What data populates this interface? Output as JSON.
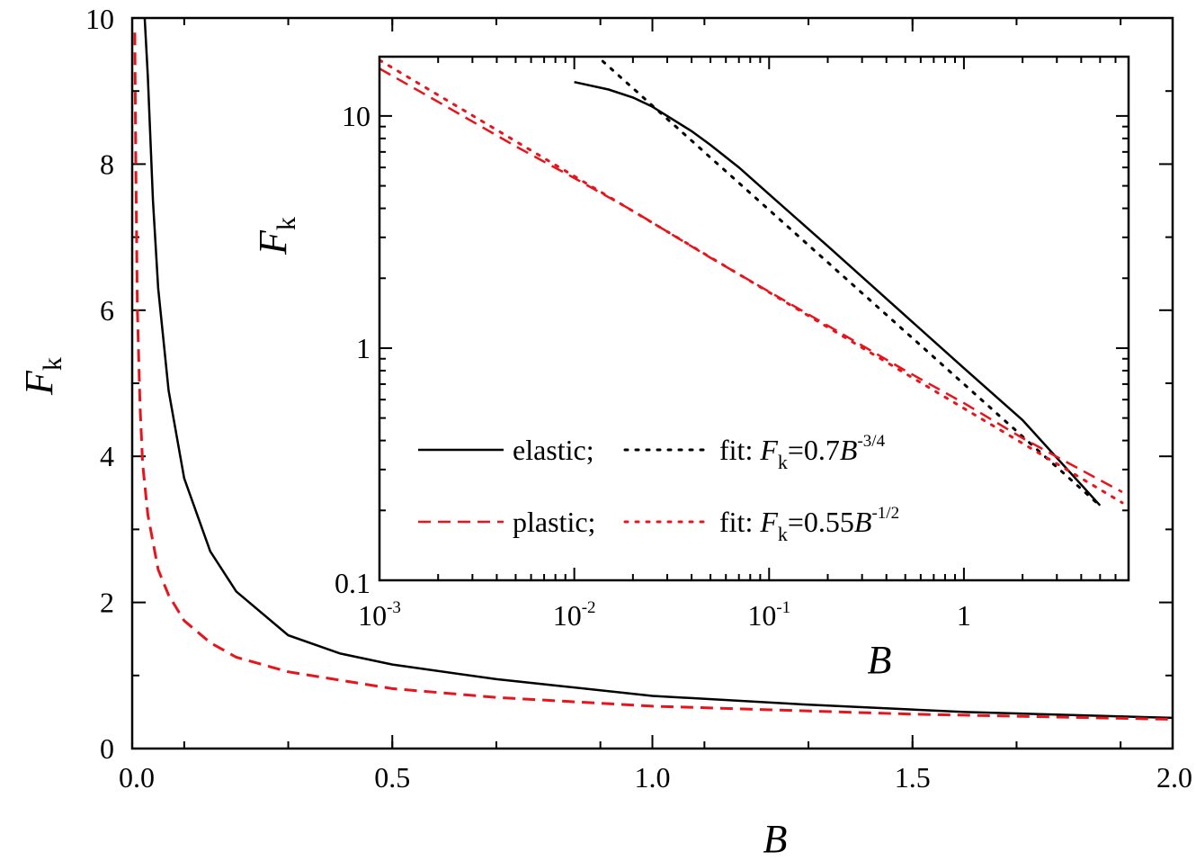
{
  "chart_data": [
    {
      "type": "line",
      "xlabel": "B",
      "ylabel": {
        "main": "F",
        "sub": "k"
      },
      "xlim": [
        0,
        2.0
      ],
      "ylim": [
        0,
        10
      ],
      "x_ticks": [
        0.0,
        0.5,
        1.0,
        1.5,
        2.0
      ],
      "x_tick_labels": [
        "0.0",
        "0.5",
        "1.0",
        "1.5",
        "2.0"
      ],
      "y_ticks": [
        0,
        2,
        4,
        6,
        8,
        10
      ],
      "y_tick_labels": [
        "0",
        "2",
        "4",
        "6",
        "8",
        "10"
      ],
      "grid": false,
      "series": [
        {
          "key": "elastic",
          "color": "#000000",
          "style": "solid",
          "x": [
            0.024,
            0.03,
            0.04,
            0.05,
            0.07,
            0.1,
            0.15,
            0.2,
            0.3,
            0.4,
            0.5,
            0.7,
            1.0,
            1.3,
            1.6,
            2.0
          ],
          "y": [
            10.0,
            9.2,
            7.5,
            6.3,
            4.9,
            3.7,
            2.7,
            2.15,
            1.55,
            1.3,
            1.15,
            0.95,
            0.72,
            0.6,
            0.5,
            0.42
          ]
        },
        {
          "key": "plastic",
          "color": "#e8141b",
          "style": "dashed",
          "x": [
            0.005,
            0.007,
            0.01,
            0.015,
            0.02,
            0.03,
            0.05,
            0.07,
            0.1,
            0.15,
            0.2,
            0.3,
            0.5,
            0.7,
            1.0,
            1.5,
            2.0
          ],
          "y": [
            9.8,
            8.0,
            6.0,
            4.7,
            3.9,
            3.2,
            2.45,
            2.1,
            1.75,
            1.45,
            1.25,
            1.05,
            0.82,
            0.7,
            0.58,
            0.47,
            0.4
          ]
        }
      ]
    },
    {
      "type": "line",
      "scale": "log-log",
      "xlabel": "B",
      "ylabel": {
        "main": "F",
        "sub": "k"
      },
      "xlim": [
        0.001,
        7.0
      ],
      "ylim": [
        0.1,
        18.0
      ],
      "x_tick_labels": [
        {
          "base": "10",
          "exp": "-3"
        },
        {
          "base": "10",
          "exp": "-2"
        },
        {
          "base": "10",
          "exp": "-1"
        },
        {
          "base": "1",
          "exp": ""
        }
      ],
      "y_tick_labels": [
        "0.1",
        "1",
        "10"
      ],
      "grid": false,
      "series": [
        {
          "key": "elastic",
          "color": "#000000",
          "style": "solid",
          "x": [
            0.01,
            0.015,
            0.02,
            0.025,
            0.03,
            0.04,
            0.05,
            0.07,
            0.1,
            0.2,
            0.5,
            1.0,
            2.0,
            5.0
          ],
          "y": [
            14.0,
            13.0,
            12.0,
            11.0,
            10.0,
            8.6,
            7.5,
            6.0,
            4.6,
            2.75,
            1.38,
            0.82,
            0.49,
            0.21
          ]
        },
        {
          "key": "elastic_fit",
          "color": "#000000",
          "style": "dotted",
          "fit": {
            "a": 0.7,
            "b": -0.75
          },
          "x_range": [
            0.014,
            5.0
          ]
        },
        {
          "key": "plastic",
          "color": "#e8141b",
          "style": "dashed",
          "x": [
            0.001,
            0.002,
            0.005,
            0.01,
            0.02,
            0.05,
            0.1,
            0.2,
            0.5,
            1.0,
            2.0,
            3.0,
            5.0,
            6.5
          ],
          "y": [
            16.0,
            11.5,
            7.4,
            5.4,
            3.9,
            2.45,
            1.75,
            1.25,
            0.8,
            0.58,
            0.41,
            0.34,
            0.27,
            0.24
          ]
        },
        {
          "key": "plastic_fit",
          "color": "#e8141b",
          "style": "dotted",
          "fit": {
            "a": 0.55,
            "b": -0.5
          },
          "x_range": [
            0.001,
            6.5
          ]
        }
      ],
      "legend": {
        "placement": "lower-left",
        "rows": [
          {
            "label": "elastic;",
            "fit_prefix": "fit: ",
            "fit_var": "F",
            "fit_sub": "k",
            "fit_eq": "=0.7",
            "fit_b": "B",
            "fit_exp": "-3/4"
          },
          {
            "label": "plastic;",
            "fit_prefix": "fit: ",
            "fit_var": "F",
            "fit_sub": "k",
            "fit_eq": "=0.55",
            "fit_b": "B",
            "fit_exp": "-1/2"
          }
        ]
      }
    }
  ]
}
